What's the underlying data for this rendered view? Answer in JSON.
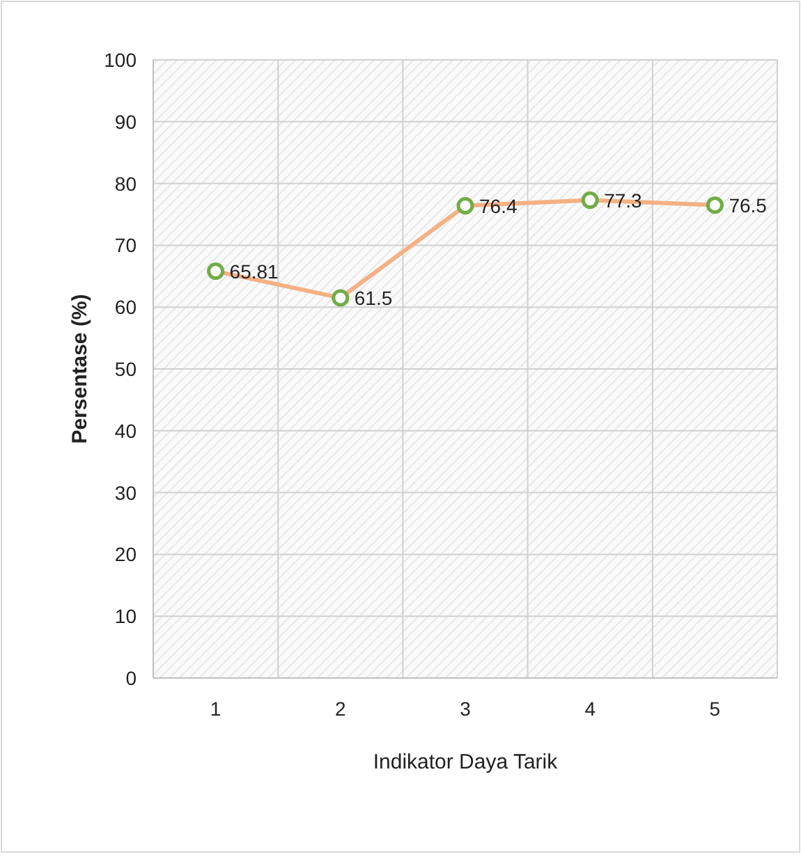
{
  "chart_data": {
    "type": "line",
    "xlabel": "Indikator Daya Tarik",
    "ylabel": "Persentase (%)",
    "categories": [
      "1",
      "2",
      "3",
      "4",
      "5"
    ],
    "series": [
      {
        "color": "#f4b183",
        "colors": [
          "#70ad47",
          "#70ad47",
          "#70ad47",
          "#70ad47",
          "#70ad47"
        ],
        "values": [
          65.81,
          61.5,
          76.4,
          77.3,
          76.5
        ]
      }
    ],
    "marker": "circle",
    "data_labels": true,
    "grid": true,
    "ylim": [
      0,
      100
    ],
    "yticks": [
      0,
      10,
      20,
      30,
      40,
      50,
      60,
      70,
      80,
      90,
      100
    ]
  }
}
